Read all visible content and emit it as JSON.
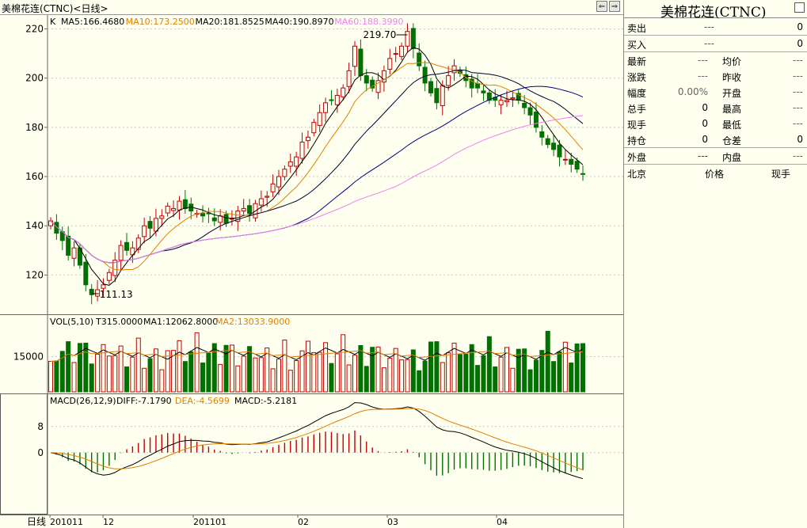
{
  "window": {
    "title": "美棉花连(CTNC)<日线>",
    "nav_left": "⇐",
    "nav_right": "⇒"
  },
  "price_panel": {
    "header_label": "K",
    "ma": [
      {
        "label": "MA5:166.4680",
        "color": "#000000"
      },
      {
        "label": "MA10:173.2500",
        "color": "#c87800"
      },
      {
        "label": "MA20:181.8525",
        "color": "#000000"
      },
      {
        "label": "MA40:190.8970",
        "color": "#000000"
      },
      {
        "label": "MA60:188.3990",
        "color": "#e070e0"
      }
    ],
    "y_ticks": [
      "220",
      "200",
      "180",
      "160",
      "140",
      "120"
    ],
    "high_label": "219.70",
    "low_label": "111.13"
  },
  "volume_panel": {
    "header": "VOL(5,10)",
    "total": "T315.0000",
    "ma1": "MA1:12062.8000",
    "ma2": "MA2:13033.9000",
    "y_tick": "15000"
  },
  "macd_panel": {
    "header": "MACD(26,12,9)",
    "diff": "DIFF:-7.1790",
    "dea": "DEA:-4.5699",
    "macd": "MACD:-5.2181",
    "y_ticks": [
      "8",
      "0"
    ]
  },
  "x_axis": {
    "period_label": "日线",
    "labels": [
      "201011",
      "12",
      "201101",
      "02",
      "03",
      "04"
    ]
  },
  "quote": {
    "title": "美棉花连(CTNC)",
    "rows": [
      {
        "label": "卖出",
        "value": "---",
        "vol": "0"
      },
      {
        "label": "买入",
        "value": "---",
        "vol": "0"
      }
    ],
    "grid": [
      {
        "l1": "最新",
        "v1": "---",
        "l2": "均价",
        "v2": "---"
      },
      {
        "l1": "涨跌",
        "v1": "---",
        "l2": "昨收",
        "v2": "---"
      },
      {
        "l1": "幅度",
        "v1": "0.00%",
        "l2": "开盘",
        "v2": "---"
      },
      {
        "l1": "总手",
        "v1": "0",
        "l2": "最高",
        "v2": "---"
      },
      {
        "l1": "现手",
        "v1": "0",
        "l2": "最低",
        "v2": "---"
      },
      {
        "l1": "持仓",
        "v1": "0",
        "l2": "仓差",
        "v2": "0"
      }
    ],
    "outer_label": "外盘",
    "outer_value": "---",
    "inner_label": "内盘",
    "inner_value": "---",
    "tick_headers": [
      "北京",
      "价格",
      "现手"
    ]
  },
  "colors": {
    "up": "#c00000",
    "down": "#007000",
    "ma10": "#e08000",
    "ma60": "#ee82ee",
    "dea": "#e08000",
    "grid": "#c8c8c8"
  },
  "chart_data": {
    "type": "candlestick",
    "ohlc_close": [
      142,
      137,
      134,
      128,
      131,
      124,
      116,
      112,
      114,
      116,
      121,
      126,
      132,
      130,
      131,
      135,
      140,
      139,
      143,
      144,
      148,
      147,
      150,
      147,
      146,
      145,
      144,
      145,
      142,
      144,
      141,
      143,
      146,
      147,
      145,
      149,
      151,
      152,
      157,
      160,
      163,
      166,
      168,
      174,
      176,
      182,
      186,
      190,
      191,
      193,
      196,
      203,
      213,
      201,
      198,
      196,
      199,
      203,
      208,
      210,
      213,
      219,
      212,
      205,
      198,
      194,
      190,
      197,
      201,
      205,
      202,
      199,
      196,
      196,
      194,
      191,
      191,
      191,
      191,
      192,
      191,
      188,
      185,
      180,
      176,
      173,
      171,
      168,
      167,
      165,
      163,
      161
    ],
    "y_range": [
      105,
      225
    ],
    "high": 219.7,
    "low": 111.13,
    "volume_range": [
      0,
      28000
    ],
    "macd_range": [
      -18,
      14
    ]
  }
}
